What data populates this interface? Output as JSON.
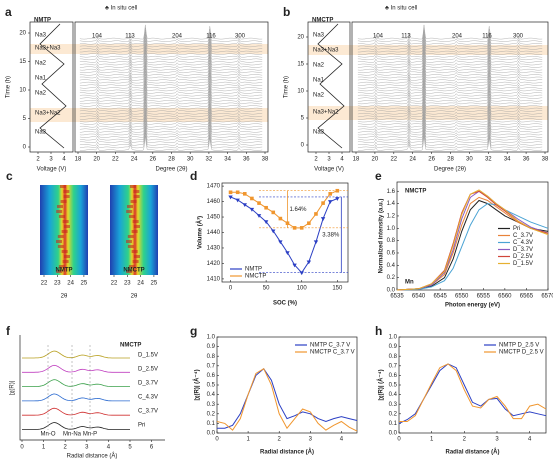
{
  "panels": {
    "a": {
      "label": "a",
      "sample": "NMTP",
      "cell": "♣ In situ cell",
      "peaks": [
        "104",
        "113",
        "204",
        "116",
        "300"
      ],
      "time_label": "Time (h)",
      "time_ticks": [
        0,
        5,
        10,
        15,
        20
      ],
      "voltage_ticks": [
        2,
        3,
        4
      ],
      "degree_ticks": [
        18,
        20,
        22,
        24,
        26,
        28,
        30,
        32,
        34,
        36,
        38
      ],
      "voltage_label": "Voltage (V)",
      "degree_label": "Degree (2θ)",
      "phases": [
        "Na3",
        "Na3+Na3",
        "Na2",
        "Na1",
        "Na2",
        "Na3+Na2",
        "Na3"
      ]
    },
    "b": {
      "label": "b",
      "sample": "NMCTP",
      "cell": "♣ In situ cell",
      "peaks": [
        "104",
        "113",
        "204",
        "116",
        "300"
      ],
      "time_label": "Time (h)",
      "time_ticks": [
        0,
        5,
        10,
        15,
        20
      ],
      "voltage_ticks": [
        2,
        3,
        4
      ],
      "degree_ticks": [
        18,
        20,
        22,
        24,
        26,
        28,
        30,
        32,
        34,
        36,
        38
      ],
      "voltage_label": "Voltage (V)",
      "degree_label": "Degree (2θ)",
      "phases": [
        "Na3",
        "Na3+Na3",
        "Na2",
        "Na1",
        "Na2",
        "Na3+Na2",
        "Na3"
      ]
    },
    "c": {
      "label": "c",
      "maps": [
        "NMTP",
        "NMCTP"
      ],
      "ticks": [
        22,
        23,
        24,
        25
      ],
      "x_label": "2θ"
    },
    "f": {
      "label": "f",
      "sample": "NMCTP",
      "curves": [
        "D_1.5V",
        "D_2.5V",
        "D_3.7V",
        "C_4.3V",
        "C_3.7V",
        "Pri"
      ],
      "bonds": [
        "Mn-O",
        "Mn-Na",
        "Mn-P"
      ],
      "y_label": "|χ(R)|",
      "x_label": "Radial distance (Å)",
      "xticks": [
        0,
        1,
        2,
        3,
        4,
        5,
        6
      ]
    }
  },
  "chart_data": [
    {
      "type": "line",
      "panel": "d",
      "x_label": "SOC (%)",
      "y_label": "Volume (Å³)",
      "markers": true,
      "legend": "lower left",
      "x": [
        0,
        10,
        20,
        30,
        40,
        50,
        60,
        70,
        80,
        90,
        100,
        110,
        120,
        130,
        140,
        150
      ],
      "series": [
        {
          "name": "NMTP",
          "color": "#2b3fc4",
          "values": [
            1463,
            1461,
            1458,
            1455,
            1451,
            1447,
            1441,
            1434,
            1427,
            1419,
            1414,
            1421,
            1434,
            1449,
            1460,
            1462
          ]
        },
        {
          "name": "NMCTP",
          "color": "#f0962e",
          "values": [
            1466,
            1466,
            1465,
            1462,
            1459,
            1456,
            1453,
            1449,
            1446,
            1443,
            1443,
            1446,
            1452,
            1459,
            1465,
            1467
          ]
        }
      ],
      "xlim": [
        -12,
        165
      ],
      "xticks": [
        0,
        50,
        100,
        150
      ],
      "ylim": [
        1408,
        1472
      ],
      "yticks": [
        1410,
        1420,
        1430,
        1440,
        1450,
        1460,
        1470
      ],
      "annotations": [
        "1.64%",
        "3.38%"
      ]
    },
    {
      "type": "line",
      "panel": "e",
      "x_label": "Photon energy (eV)",
      "y_label": "Normalized intensity (a.u.)",
      "markers": false,
      "legend": "right",
      "x": [
        6535,
        6540,
        6543,
        6546,
        6548,
        6550,
        6552,
        6554,
        6556,
        6558,
        6560,
        6563,
        6566,
        6570
      ],
      "series": [
        {
          "name": "Pri",
          "color": "#222222",
          "values": [
            0,
            0.02,
            0.06,
            0.2,
            0.5,
            0.95,
            1.3,
            1.45,
            1.4,
            1.3,
            1.2,
            1.1,
            1.0,
            0.95
          ]
        },
        {
          "name": "C_3.7V",
          "color": "#e8833a",
          "values": [
            0,
            0.02,
            0.08,
            0.25,
            0.6,
            1.05,
            1.4,
            1.5,
            1.45,
            1.35,
            1.25,
            1.1,
            1.0,
            0.9
          ]
        },
        {
          "name": "C_4.3V",
          "color": "#4aa3d4",
          "values": [
            0,
            0.01,
            0.05,
            0.15,
            0.35,
            0.7,
            1.05,
            1.3,
            1.4,
            1.38,
            1.3,
            1.2,
            1.1,
            1.0
          ]
        },
        {
          "name": "D_3.7V",
          "color": "#8a5cc2",
          "values": [
            0,
            0.02,
            0.08,
            0.28,
            0.65,
            1.15,
            1.5,
            1.6,
            1.52,
            1.4,
            1.3,
            1.15,
            1.02,
            0.92
          ]
        },
        {
          "name": "D_2.5V",
          "color": "#d0453a",
          "values": [
            0,
            0.02,
            0.1,
            0.32,
            0.75,
            1.25,
            1.55,
            1.6,
            1.5,
            1.38,
            1.28,
            1.12,
            1.0,
            0.92
          ]
        },
        {
          "name": "D_1.5V",
          "color": "#e6b030",
          "values": [
            0,
            0.02,
            0.1,
            0.3,
            0.72,
            1.22,
            1.55,
            1.62,
            1.52,
            1.4,
            1.3,
            1.12,
            1.0,
            0.9
          ]
        }
      ],
      "xlim": [
        6535,
        6570
      ],
      "xticks": [
        6535,
        6540,
        6545,
        6550,
        6555,
        6560,
        6565,
        6570
      ],
      "ylim": [
        0,
        1.75
      ],
      "yticks": [
        {
          "value": 0,
          "label": "0.0"
        },
        0.2,
        0.4,
        0.6,
        0.8,
        {
          "value": 1,
          "label": "1.0"
        },
        1.2,
        1.4,
        1.6
      ],
      "annotations": [
        "NMCTP",
        "Mn"
      ]
    },
    {
      "type": "line",
      "panel": "g",
      "x_label": "Radial distance (Å)",
      "y_label": "|χ(R)| (Å⁻⁴)",
      "markers": false,
      "legend": "upper right",
      "x": [
        0,
        0.25,
        0.5,
        0.75,
        1,
        1.25,
        1.5,
        1.75,
        2,
        2.25,
        2.5,
        2.75,
        3,
        3.25,
        3.5,
        3.75,
        4,
        4.25,
        4.5
      ],
      "series": [
        {
          "name": "NMTP C_3.7 V",
          "color": "#2b3fc4",
          "values": [
            0.05,
            0.05,
            0.08,
            0.2,
            0.4,
            0.6,
            0.67,
            0.55,
            0.3,
            0.15,
            0.18,
            0.22,
            0.2,
            0.15,
            0.12,
            0.15,
            0.17,
            0.15,
            0.13
          ]
        },
        {
          "name": "NMCTP C_3.7 V",
          "color": "#f0962e",
          "values": [
            0.12,
            0.1,
            0.03,
            0.15,
            0.4,
            0.62,
            0.67,
            0.5,
            0.2,
            0.05,
            0.15,
            0.25,
            0.22,
            0.1,
            0.03,
            0.08,
            0.12,
            0.06,
            0.02
          ]
        }
      ],
      "xlim": [
        0,
        4.5
      ],
      "xticks": [
        0,
        1,
        2,
        3,
        4
      ],
      "ylim": [
        0,
        1
      ],
      "yticks": [
        {
          "value": 0,
          "label": "0.0"
        },
        0.1,
        0.2,
        0.3,
        0.4,
        0.5,
        0.6,
        0.7,
        0.8,
        0.9,
        {
          "value": 1,
          "label": "1.0"
        }
      ]
    },
    {
      "type": "line",
      "panel": "h",
      "x_label": "Radial distance (Å)",
      "y_label": "|χ(R)| (Å⁻⁴)",
      "markers": false,
      "legend": "upper right",
      "x": [
        0,
        0.25,
        0.5,
        0.75,
        1,
        1.25,
        1.5,
        1.75,
        2,
        2.25,
        2.5,
        2.75,
        3,
        3.25,
        3.5,
        3.75,
        4,
        4.25,
        4.5
      ],
      "series": [
        {
          "name": "NMTP D_2.5 V",
          "color": "#2b3fc4",
          "values": [
            0.1,
            0.14,
            0.2,
            0.35,
            0.5,
            0.65,
            0.72,
            0.68,
            0.5,
            0.32,
            0.28,
            0.35,
            0.36,
            0.25,
            0.18,
            0.2,
            0.22,
            0.2,
            0.18
          ]
        },
        {
          "name": "NMCTP D_2.5 V",
          "color": "#f0962e",
          "values": [
            0.12,
            0.12,
            0.18,
            0.35,
            0.52,
            0.68,
            0.72,
            0.65,
            0.45,
            0.28,
            0.26,
            0.35,
            0.38,
            0.28,
            0.15,
            0.15,
            0.28,
            0.3,
            0.25
          ]
        }
      ],
      "xlim": [
        0,
        4.5
      ],
      "xticks": [
        0,
        1,
        2,
        3,
        4
      ],
      "ylim": [
        0,
        1
      ],
      "yticks": [
        {
          "value": 0,
          "label": "0.0"
        },
        0.1,
        0.2,
        0.3,
        0.4,
        0.5,
        0.6,
        0.7,
        0.8,
        0.9,
        {
          "value": 1,
          "label": "1.0"
        }
      ]
    }
  ]
}
